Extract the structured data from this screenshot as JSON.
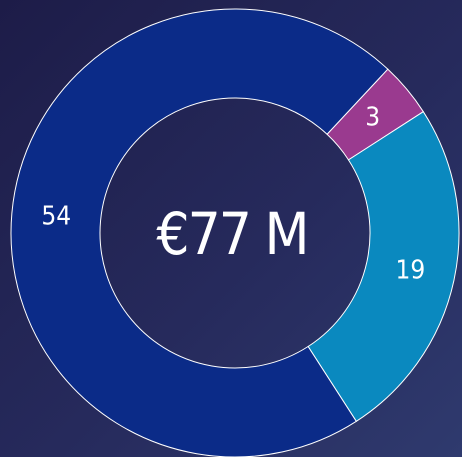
{
  "chart_data": {
    "type": "donut",
    "center_label": "€77 M",
    "values": [
      3,
      19,
      54
    ],
    "colors": [
      "#9a3a8f",
      "#0a89bf",
      "#0b2b88"
    ]
  }
}
